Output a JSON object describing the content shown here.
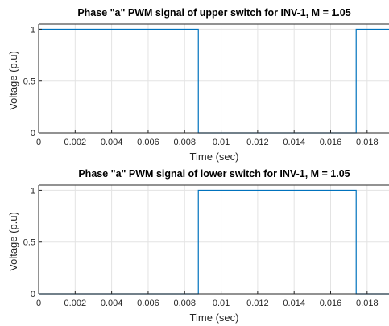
{
  "chart_data": [
    {
      "type": "line",
      "title": "Phase \"a\" PWM signal of upper switch for INV-1, M =  1.05",
      "xlabel": "Time (sec)",
      "ylabel": "Voltage (p.u)",
      "xlim": [
        0,
        0.0192
      ],
      "ylim": [
        0,
        1.05
      ],
      "xticks": [
        "0",
        "0.002",
        "0.004",
        "0.006",
        "0.008",
        "0.01",
        "0.012",
        "0.014",
        "0.016",
        "0.018"
      ],
      "yticks": [
        "0",
        "0.5",
        "1"
      ],
      "grid": true,
      "color": "#0072BD",
      "series": [
        {
          "x": [
            0,
            0.00875,
            0.00875,
            0.0174,
            0.0174,
            0.0192
          ],
          "y": [
            1,
            1,
            0,
            0,
            1,
            1
          ]
        }
      ]
    },
    {
      "type": "line",
      "title": "Phase \"a\" PWM signal of lower switch for INV-1, M =  1.05",
      "xlabel": "Time (sec)",
      "ylabel": "Voltage (p.u)",
      "xlim": [
        0,
        0.0192
      ],
      "ylim": [
        0,
        1.05
      ],
      "xticks": [
        "0",
        "0.002",
        "0.004",
        "0.006",
        "0.008",
        "0.01",
        "0.012",
        "0.014",
        "0.016",
        "0.018"
      ],
      "yticks": [
        "0",
        "0.5",
        "1"
      ],
      "grid": true,
      "color": "#0072BD",
      "series": [
        {
          "x": [
            0,
            0.00875,
            0.00875,
            0.0174,
            0.0174,
            0.0192
          ],
          "y": [
            0,
            0,
            1,
            1,
            0,
            0
          ]
        }
      ]
    }
  ]
}
